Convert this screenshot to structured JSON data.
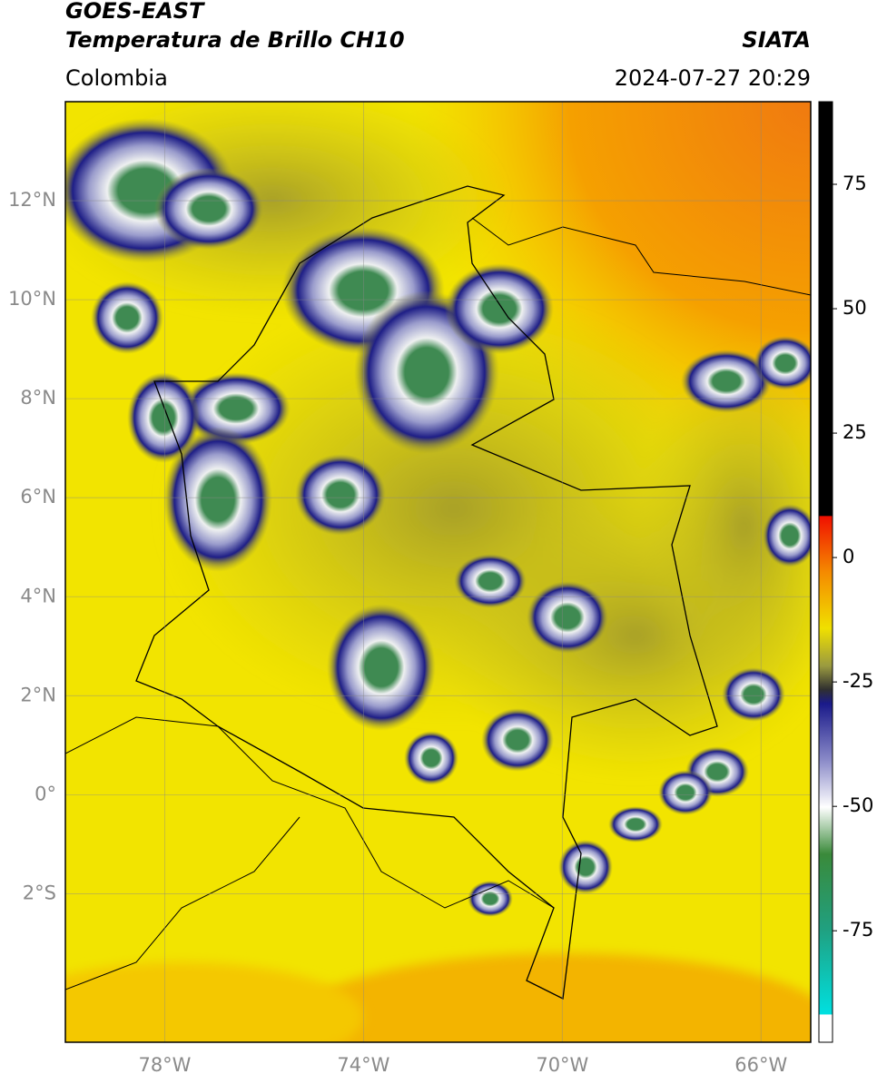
{
  "header": {
    "line1": "GOES-EAST",
    "line2": "Temperatura de Brillo CH10",
    "source": "SIATA",
    "region": "Colombia",
    "datetime": "2024-07-27 20:29"
  },
  "map": {
    "xlim": [
      -80,
      -65
    ],
    "ylim": [
      -5,
      14
    ],
    "lat_ticks": [
      {
        "value": 12,
        "label": "12°N"
      },
      {
        "value": 10,
        "label": "10°N"
      },
      {
        "value": 8,
        "label": "8°N"
      },
      {
        "value": 6,
        "label": "6°N"
      },
      {
        "value": 4,
        "label": "4°N"
      },
      {
        "value": 2,
        "label": "2°N"
      },
      {
        "value": 0,
        "label": "0°"
      },
      {
        "value": -2,
        "label": "2°S"
      }
    ],
    "lon_ticks": [
      {
        "value": -78,
        "label": "78°W"
      },
      {
        "value": -74,
        "label": "74°W"
      },
      {
        "value": -70,
        "label": "70°W"
      },
      {
        "value": -66,
        "label": "66°W"
      }
    ]
  },
  "colorbar": {
    "lim": [
      -97.4,
      91.6
    ],
    "ticks": [
      75,
      50,
      25,
      0,
      -25,
      -50,
      -75
    ]
  }
}
